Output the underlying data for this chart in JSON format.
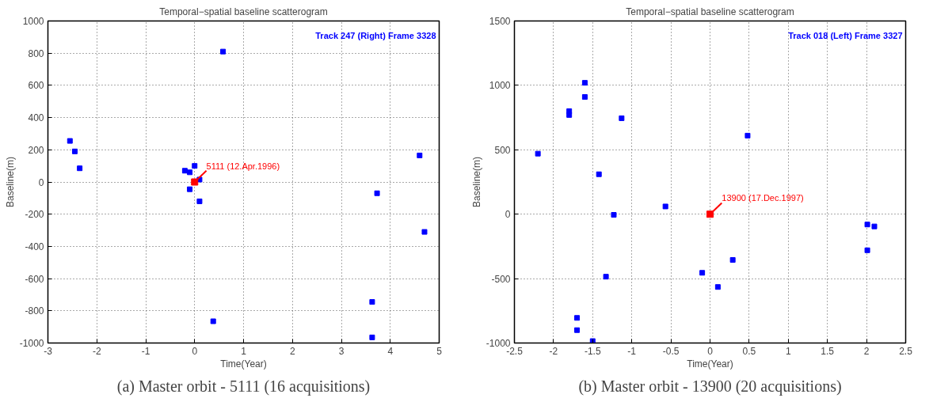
{
  "chart_data": [
    {
      "type": "scatter",
      "title": "Temporal−spatial baseline scatterogram",
      "xlabel": "Time(Year)",
      "ylabel": "Baseline(m)",
      "xlim": [
        -3,
        5
      ],
      "ylim": [
        -1000,
        1000
      ],
      "xticks": [
        -3,
        -2,
        -1,
        0,
        1,
        2,
        3,
        4,
        5
      ],
      "yticks": [
        -1000,
        -800,
        -600,
        -400,
        -200,
        0,
        200,
        400,
        600,
        800,
        1000
      ],
      "grid": true,
      "marker": "square",
      "series": [
        {
          "color": "#0000ff",
          "x": [
            -2.55,
            -2.45,
            -2.35,
            -0.2,
            -0.1,
            0,
            -0.1,
            0.1,
            0.1,
            0.58,
            0.38,
            4.6,
            3.73,
            4.7,
            3.63,
            3.63
          ],
          "values": [
            255,
            190,
            85,
            70,
            60,
            100,
            -45,
            15,
            -120,
            810,
            -865,
            165,
            -70,
            -310,
            -745,
            -965
          ]
        },
        {
          "color": "#ff0000",
          "x": [
            0
          ],
          "values": [
            0
          ]
        }
      ],
      "annotations": [
        {
          "text": "5111 (12.Apr.1996)",
          "x": 0,
          "y": 0
        },
        "Track 247 (Right) Frame 3328",
        "(a) Master orbit - 5111 (16 acquisitions)"
      ]
    },
    {
      "type": "scatter",
      "title": "Temporal−spatial baseline scatterogram",
      "xlabel": "Time(Year)",
      "ylabel": "Baseline(m)",
      "xlim": [
        -2.5,
        2.5
      ],
      "ylim": [
        -1000,
        1500
      ],
      "xticks": [
        -2.5,
        -2,
        -1.5,
        -1,
        -0.5,
        0,
        0.5,
        1,
        1.5,
        2,
        2.5
      ],
      "yticks": [
        -1000,
        -500,
        0,
        500,
        1000,
        1500
      ],
      "grid": true,
      "marker": "square",
      "series": [
        {
          "color": "#0000ff",
          "x": [
            -2.2,
            -1.6,
            -1.6,
            -1.8,
            -1.8,
            -1.13,
            -1.42,
            -1.23,
            -0.57,
            -0.1,
            -1.33,
            -1.7,
            -1.7,
            -1.5,
            0.48,
            2.01,
            2.1,
            2.01,
            0.29,
            0.1
          ],
          "values": [
            470,
            1020,
            910,
            800,
            770,
            745,
            310,
            -5,
            60,
            -455,
            -485,
            -805,
            -900,
            -985,
            610,
            -80,
            -95,
            -280,
            -355,
            -565
          ]
        },
        {
          "color": "#ff0000",
          "x": [
            0
          ],
          "values": [
            0
          ]
        }
      ],
      "annotations": [
        {
          "text": "13900 (17.Dec.1997)",
          "x": 0,
          "y": 0
        },
        "Track 018 (Left) Frame 3327",
        "(b) Master orbit - 13900 (20 acquisitions)"
      ]
    }
  ]
}
